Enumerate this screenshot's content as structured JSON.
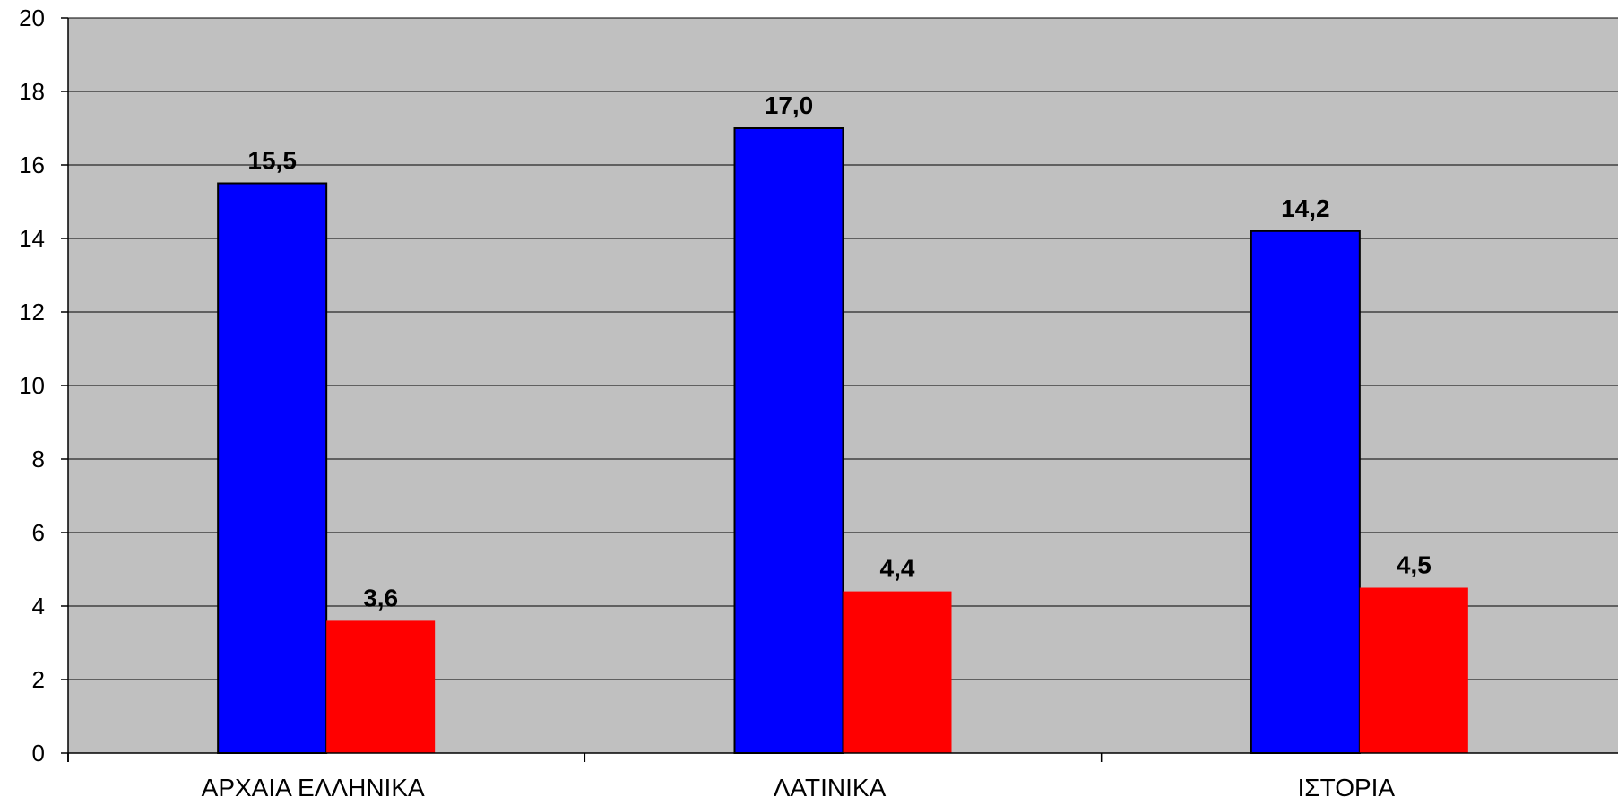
{
  "chart_data": {
    "type": "bar",
    "categories": [
      "ΑΡΧΑΙΑ ΕΛΛΗΝΙΚΑ",
      "ΛΑΤΙΝΙΚΑ",
      "ΙΣΤΟΡΙΑ"
    ],
    "series": [
      {
        "values": [
          15.5,
          17.0,
          14.2
        ],
        "labels": [
          "15,5",
          "17,0",
          "14,2"
        ],
        "color": "#0000FF"
      },
      {
        "values": [
          3.6,
          4.4,
          4.5
        ],
        "labels": [
          "3,6",
          "4,4",
          "4,5"
        ],
        "color": "#FF0000"
      }
    ],
    "y_ticks": [
      {
        "value": 0,
        "label": "0"
      },
      {
        "value": 2,
        "label": "2"
      },
      {
        "value": 4,
        "label": "4"
      },
      {
        "value": 6,
        "label": "6"
      },
      {
        "value": 8,
        "label": "8"
      },
      {
        "value": 10,
        "label": "10"
      },
      {
        "value": 12,
        "label": "12"
      },
      {
        "value": 14,
        "label": "14"
      },
      {
        "value": 16,
        "label": "16"
      },
      {
        "value": 18,
        "label": "18"
      },
      {
        "value": 20,
        "label": "20"
      }
    ],
    "ylim": [
      0,
      20
    ],
    "grid": true,
    "plot_background": "#C0C0C0",
    "title": "",
    "xlabel": "",
    "ylabel": ""
  }
}
